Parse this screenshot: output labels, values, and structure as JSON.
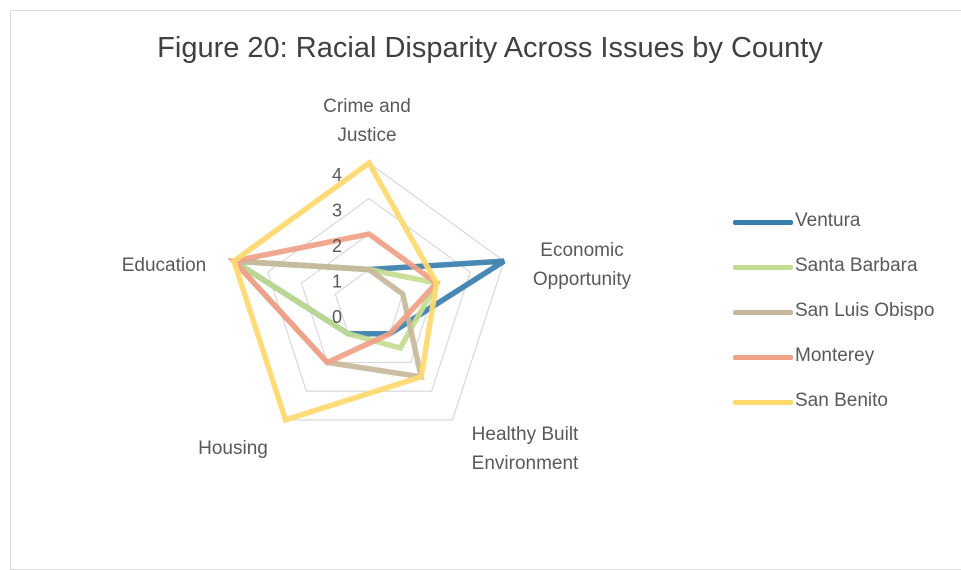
{
  "chart_data": {
    "type": "radar",
    "title": "Figure 20: Racial Disparity Across Issues by County",
    "categories": [
      "Crime and Justice",
      "Economic Opportunity",
      "Healthy Built Environment",
      "Housing",
      "Education"
    ],
    "tick_labels": [
      "0",
      "1",
      "2",
      "3",
      "4"
    ],
    "rlim": [
      0,
      4
    ],
    "grid": true,
    "legend_position": "right",
    "series": [
      {
        "name": "Ventura",
        "color": "#3a7ead",
        "values": [
          1,
          4,
          1,
          1,
          4
        ]
      },
      {
        "name": "Santa Barbara",
        "color": "#c5dc8f",
        "values": [
          1,
          2,
          1.5,
          1,
          4
        ]
      },
      {
        "name": "San Luis Obispo",
        "color": "#c7b89b",
        "values": [
          1,
          1,
          2.5,
          2,
          4
        ]
      },
      {
        "name": "Monterey",
        "color": "#f0a188",
        "values": [
          2,
          2,
          1,
          2,
          4
        ]
      },
      {
        "name": "San Benito",
        "color": "#fdd96e",
        "values": [
          4,
          2,
          2.5,
          4,
          4
        ]
      }
    ]
  }
}
